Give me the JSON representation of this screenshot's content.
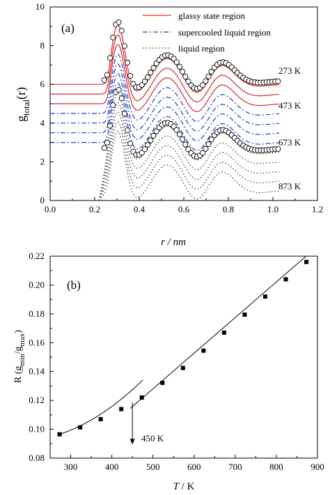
{
  "chart_data": [
    {
      "type": "line",
      "panel_label": "(a)",
      "xlabel": "r / nm",
      "ylabel": "g",
      "ylabel_sub": "total",
      "ylabel_arg": "(r)",
      "xlim": [
        0.0,
        1.2
      ],
      "ylim": [
        0,
        10
      ],
      "xticks": [
        "0.0",
        "0.2",
        "0.4",
        "0.6",
        "0.8",
        "1.0",
        "1.2"
      ],
      "yticks": [
        "0",
        "2",
        "4",
        "6",
        "8",
        "10"
      ],
      "legend": [
        {
          "label": "glassy state region",
          "color": "#d62728",
          "style": "solid"
        },
        {
          "label": "supercooled liquid region",
          "color": "#1f3fbf",
          "style": "dashdot"
        },
        {
          "label": "liquid region",
          "color": "#333333",
          "style": "dotted"
        }
      ],
      "legend_position": "top-right",
      "offset_curves": [
        {
          "base": 6.0,
          "region": "glassy",
          "label": "273 K"
        },
        {
          "base": 5.5,
          "region": "glassy"
        },
        {
          "base": 5.0,
          "region": "glassy"
        },
        {
          "base": 4.5,
          "region": "supercooled",
          "label": "473 K"
        },
        {
          "base": 4.0,
          "region": "supercooled"
        },
        {
          "base": 3.5,
          "region": "supercooled"
        },
        {
          "base": 3.0,
          "region": "supercooled"
        },
        {
          "base": 2.5,
          "region": "liquid",
          "label": "673 K"
        },
        {
          "base": 2.0,
          "region": "liquid"
        },
        {
          "base": 1.5,
          "region": "liquid"
        },
        {
          "base": 1.0,
          "region": "liquid"
        },
        {
          "base": 0.5,
          "region": "liquid",
          "label": "873 K"
        }
      ],
      "circle_series": [
        {
          "base": 6.0,
          "label": "273 K"
        },
        {
          "base": 2.5,
          "label": "673 K"
        }
      ],
      "shape_peaks": [
        {
          "r": 0.305,
          "amp": 3.25,
          "sigma": 0.032
        },
        {
          "r": 0.38,
          "amp": -0.55,
          "sigma": 0.05
        },
        {
          "r": 0.525,
          "amp": 1.35,
          "sigma": 0.06
        },
        {
          "r": 0.66,
          "amp": -0.65,
          "sigma": 0.045
        },
        {
          "r": 0.77,
          "amp": 1.0,
          "sigma": 0.055
        },
        {
          "r": 0.93,
          "amp": -0.1,
          "sigma": 0.05
        }
      ],
      "r_start": 0.2,
      "r_end": 1.03
    },
    {
      "type": "scatter",
      "panel_label": "(b)",
      "xlabel": "T / K",
      "ylabel": "R (g",
      "ylabel_parts": [
        "R (g",
        "min",
        "/g",
        "max",
        ")"
      ],
      "xlim": [
        250,
        900
      ],
      "ylim": [
        0.08,
        0.22
      ],
      "xticks": [
        "300",
        "400",
        "500",
        "600",
        "700",
        "800",
        "900"
      ],
      "yticks": [
        "0.08",
        "0.10",
        "0.12",
        "0.14",
        "0.16",
        "0.18",
        "0.20",
        "0.22"
      ],
      "x": [
        273,
        323,
        373,
        423,
        473,
        523,
        573,
        623,
        673,
        723,
        773,
        823,
        873
      ],
      "y": [
        0.0965,
        0.1013,
        0.107,
        0.114,
        0.122,
        0.1322,
        0.1425,
        0.1545,
        0.167,
        0.1795,
        0.192,
        0.204,
        0.216
      ],
      "fit_low": {
        "x": [
          273,
          475
        ],
        "poly": [
          0.0965,
          9.5e-05,
          4.5e-07
        ]
      },
      "fit_high": {
        "x": [
          445,
          873
        ],
        "slope": 0.000247,
        "intercept": 0.00455
      },
      "annotation": {
        "text": "450 K",
        "x": 450,
        "y_top": 0.1185,
        "y_bottom": 0.0895
      }
    }
  ]
}
